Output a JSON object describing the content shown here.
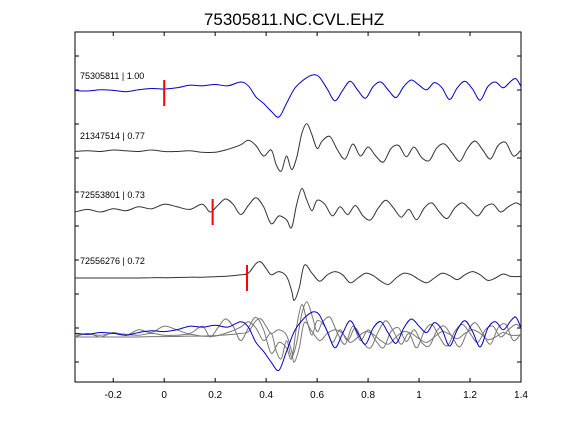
{
  "chart_data": {
    "type": "line",
    "title": "75305811.NC.CVL.EHZ",
    "xlabel": "",
    "ylabel": "",
    "xlim": [
      -0.35,
      1.4
    ],
    "xticks": [
      "-0.2",
      "0",
      "0.2",
      "0.4",
      "0.6",
      "0.8",
      "1",
      "1.2",
      "1.4"
    ],
    "xtick_values": [
      -0.2,
      0,
      0.2,
      0.4,
      0.6,
      0.8,
      1.0,
      1.2,
      1.4
    ],
    "grid": false,
    "colors": {
      "primary": "#0000cc",
      "other": "#333333",
      "stacked_other": "#777777",
      "pick": "#ff0000",
      "axis": "#000000"
    },
    "series": [
      {
        "name": "75305811 | 1.00",
        "color": "#0000cc",
        "pick_time": 0.0,
        "points": [
          [
            -0.35,
            0.2
          ],
          [
            -0.3,
            0.15
          ],
          [
            -0.25,
            0.25
          ],
          [
            -0.2,
            0.2
          ],
          [
            -0.15,
            0.1
          ],
          [
            -0.1,
            0.25
          ],
          [
            -0.05,
            0.35
          ],
          [
            0.0,
            0.3
          ],
          [
            0.05,
            0.4
          ],
          [
            0.1,
            0.6
          ],
          [
            0.15,
            0.55
          ],
          [
            0.2,
            0.65
          ],
          [
            0.25,
            0.55
          ],
          [
            0.3,
            0.85
          ],
          [
            0.33,
            0.55
          ],
          [
            0.36,
            -0.3
          ],
          [
            0.39,
            -0.8
          ],
          [
            0.42,
            -1.4
          ],
          [
            0.45,
            -1.85
          ],
          [
            0.48,
            -0.8
          ],
          [
            0.51,
            0.3
          ],
          [
            0.54,
            0.9
          ],
          [
            0.57,
            1.3
          ],
          [
            0.59,
            1.4
          ],
          [
            0.61,
            1.2
          ],
          [
            0.64,
            0.3
          ],
          [
            0.67,
            -0.6
          ],
          [
            0.7,
            0.2
          ],
          [
            0.73,
            0.9
          ],
          [
            0.76,
            0.2
          ],
          [
            0.79,
            -0.4
          ],
          [
            0.82,
            0.5
          ],
          [
            0.85,
            0.85
          ],
          [
            0.88,
            0.2
          ],
          [
            0.91,
            -0.35
          ],
          [
            0.94,
            0.5
          ],
          [
            0.97,
            1.0
          ],
          [
            1.0,
            0.6
          ],
          [
            1.03,
            0.25
          ],
          [
            1.06,
            0.8
          ],
          [
            1.09,
            0.4
          ],
          [
            1.12,
            -0.5
          ],
          [
            1.15,
            0.4
          ],
          [
            1.18,
            0.9
          ],
          [
            1.21,
            0.3
          ],
          [
            1.24,
            -0.55
          ],
          [
            1.27,
            0.5
          ],
          [
            1.3,
            0.85
          ],
          [
            1.33,
            0.4
          ],
          [
            1.36,
            0.9
          ],
          [
            1.38,
            1.1
          ],
          [
            1.4,
            0.5
          ]
        ]
      },
      {
        "name": "21347514 | 0.77",
        "color": "#333333",
        "pick_time": null,
        "points": [
          [
            -0.35,
            0.1
          ],
          [
            -0.3,
            0.15
          ],
          [
            -0.25,
            0.1
          ],
          [
            -0.2,
            0.2
          ],
          [
            -0.15,
            0.15
          ],
          [
            -0.1,
            0.1
          ],
          [
            -0.05,
            0.2
          ],
          [
            0.0,
            0.1
          ],
          [
            0.05,
            0.1
          ],
          [
            0.1,
            0.15
          ],
          [
            0.15,
            0.05
          ],
          [
            0.2,
            0.05
          ],
          [
            0.25,
            0.25
          ],
          [
            0.3,
            0.55
          ],
          [
            0.33,
            0.85
          ],
          [
            0.36,
            0.5
          ],
          [
            0.39,
            -0.2
          ],
          [
            0.42,
            0.2
          ],
          [
            0.44,
            -0.8
          ],
          [
            0.46,
            -1.2
          ],
          [
            0.48,
            -0.2
          ],
          [
            0.5,
            -1.1
          ],
          [
            0.52,
            -0.3
          ],
          [
            0.54,
            1.3
          ],
          [
            0.56,
            1.95
          ],
          [
            0.58,
            1.2
          ],
          [
            0.6,
            0.3
          ],
          [
            0.62,
            0.8
          ],
          [
            0.65,
            1.1
          ],
          [
            0.68,
            0.2
          ],
          [
            0.71,
            -0.4
          ],
          [
            0.74,
            0.6
          ],
          [
            0.77,
            -0.2
          ],
          [
            0.8,
            0.4
          ],
          [
            0.83,
            -0.2
          ],
          [
            0.86,
            -0.6
          ],
          [
            0.89,
            0.3
          ],
          [
            0.92,
            0.5
          ],
          [
            0.95,
            -0.25
          ],
          [
            0.98,
            0.4
          ],
          [
            1.01,
            -0.3
          ],
          [
            1.04,
            -0.5
          ],
          [
            1.07,
            0.35
          ],
          [
            1.1,
            0.6
          ],
          [
            1.13,
            0.0
          ],
          [
            1.16,
            -0.55
          ],
          [
            1.19,
            0.3
          ],
          [
            1.22,
            0.8
          ],
          [
            1.25,
            0.2
          ],
          [
            1.28,
            -0.4
          ],
          [
            1.31,
            0.5
          ],
          [
            1.34,
            0.7
          ],
          [
            1.37,
            -0.2
          ],
          [
            1.4,
            0.2
          ]
        ]
      },
      {
        "name": "72553801 | 0.73",
        "color": "#333333",
        "pick_time": 0.19,
        "points": [
          [
            -0.35,
            0.0
          ],
          [
            -0.3,
            0.2
          ],
          [
            -0.25,
            0.0
          ],
          [
            -0.2,
            0.25
          ],
          [
            -0.15,
            0.1
          ],
          [
            -0.1,
            0.4
          ],
          [
            -0.05,
            0.25
          ],
          [
            0.0,
            0.6
          ],
          [
            0.05,
            0.4
          ],
          [
            0.1,
            0.2
          ],
          [
            0.15,
            0.6
          ],
          [
            0.18,
            0.0
          ],
          [
            0.21,
            0.5
          ],
          [
            0.24,
            1.0
          ],
          [
            0.27,
            0.6
          ],
          [
            0.3,
            -0.2
          ],
          [
            0.33,
            0.5
          ],
          [
            0.36,
            1.1
          ],
          [
            0.39,
            0.4
          ],
          [
            0.42,
            -0.9
          ],
          [
            0.45,
            -0.3
          ],
          [
            0.48,
            -0.6
          ],
          [
            0.5,
            -1.2
          ],
          [
            0.52,
            0.6
          ],
          [
            0.54,
            1.8
          ],
          [
            0.56,
            0.9
          ],
          [
            0.58,
            0.1
          ],
          [
            0.6,
            0.9
          ],
          [
            0.63,
            0.6
          ],
          [
            0.66,
            -0.3
          ],
          [
            0.69,
            0.4
          ],
          [
            0.72,
            -0.2
          ],
          [
            0.75,
            0.5
          ],
          [
            0.78,
            -0.3
          ],
          [
            0.81,
            -0.6
          ],
          [
            0.84,
            0.3
          ],
          [
            0.87,
            0.9
          ],
          [
            0.9,
            0.3
          ],
          [
            0.93,
            -0.4
          ],
          [
            0.96,
            0.2
          ],
          [
            0.99,
            -0.6
          ],
          [
            1.02,
            0.3
          ],
          [
            1.05,
            0.7
          ],
          [
            1.08,
            0.0
          ],
          [
            1.11,
            -0.5
          ],
          [
            1.14,
            0.3
          ],
          [
            1.17,
            0.7
          ],
          [
            1.2,
            0.2
          ],
          [
            1.23,
            -0.3
          ],
          [
            1.26,
            0.4
          ],
          [
            1.29,
            0.6
          ],
          [
            1.32,
            0.0
          ],
          [
            1.35,
            0.4
          ],
          [
            1.38,
            0.7
          ],
          [
            1.4,
            0.5
          ]
        ]
      },
      {
        "name": "72556276 | 0.72",
        "color": "#333333",
        "pick_time": 0.325,
        "points": [
          [
            -0.35,
            0.0
          ],
          [
            -0.3,
            0.0
          ],
          [
            -0.25,
            0.0
          ],
          [
            -0.2,
            0.0
          ],
          [
            -0.15,
            0.0
          ],
          [
            -0.1,
            0.0
          ],
          [
            -0.05,
            0.02
          ],
          [
            0.0,
            0.02
          ],
          [
            0.05,
            0.03
          ],
          [
            0.1,
            0.05
          ],
          [
            0.15,
            0.05
          ],
          [
            0.2,
            0.08
          ],
          [
            0.25,
            0.12
          ],
          [
            0.3,
            0.2
          ],
          [
            0.33,
            0.3
          ],
          [
            0.36,
            0.9
          ],
          [
            0.38,
            1.0
          ],
          [
            0.4,
            0.6
          ],
          [
            0.42,
            0.2
          ],
          [
            0.45,
            0.4
          ],
          [
            0.48,
            0.1
          ],
          [
            0.5,
            -0.8
          ],
          [
            0.51,
            -1.4
          ],
          [
            0.53,
            -0.6
          ],
          [
            0.55,
            0.8
          ],
          [
            0.58,
            0.3
          ],
          [
            0.61,
            -0.2
          ],
          [
            0.64,
            0.2
          ],
          [
            0.67,
            0.4
          ],
          [
            0.7,
            0.2
          ],
          [
            0.73,
            -0.3
          ],
          [
            0.76,
            0.0
          ],
          [
            0.79,
            0.3
          ],
          [
            0.82,
            0.15
          ],
          [
            0.85,
            -0.2
          ],
          [
            0.88,
            -0.4
          ],
          [
            0.91,
            0.0
          ],
          [
            0.94,
            0.3
          ],
          [
            0.97,
            0.2
          ],
          [
            1.0,
            -0.1
          ],
          [
            1.03,
            -0.3
          ],
          [
            1.06,
            0.0
          ],
          [
            1.09,
            0.3
          ],
          [
            1.12,
            0.15
          ],
          [
            1.15,
            -0.1
          ],
          [
            1.18,
            0.2
          ],
          [
            1.21,
            0.4
          ],
          [
            1.24,
            0.2
          ],
          [
            1.27,
            -0.15
          ],
          [
            1.3,
            0.0
          ],
          [
            1.33,
            0.25
          ],
          [
            1.36,
            0.1
          ],
          [
            1.4,
            0.1
          ]
        ]
      }
    ]
  }
}
